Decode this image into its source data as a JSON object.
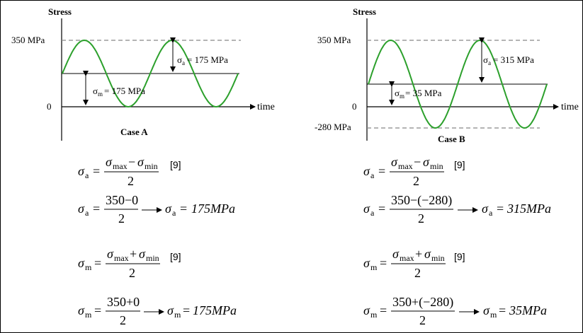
{
  "case_a": {
    "stress_label": "Stress",
    "time_label": "time",
    "y_max_label": "350 MPa",
    "y_zero_label": "0",
    "amp_label": "= 175 MPa",
    "mean_label": "= 175 MPa",
    "caption": "Case A",
    "max_mpa": 350,
    "min_mpa": 0
  },
  "case_b": {
    "stress_label": "Stress",
    "time_label": "time",
    "y_max_label": "350 MPa",
    "y_zero_label": "0",
    "y_min_label": "-280 MPa",
    "amp_label": "= 315 MPa",
    "mean_label": "= 35 MPa",
    "caption": "Case B",
    "max_mpa": 350,
    "min_mpa": -280
  },
  "symbols": {
    "sigma": "σ",
    "sub_a": "a",
    "sub_m": "m",
    "sub_max": "max",
    "sub_min": "min",
    "eq": "=",
    "minus": "−",
    "plus": "+",
    "two": "2",
    "ref": "[9]",
    "arrow": "⟶"
  },
  "equations": {
    "a_amp_num": "350−0",
    "a_amp_result": "175MPa",
    "a_mean_num": "350+0",
    "a_mean_result": "175MPa",
    "b_amp_num": "350−(−280)",
    "b_amp_result": "315MPa",
    "b_mean_num": "350+(−280)",
    "b_mean_result": "35MPa"
  }
}
